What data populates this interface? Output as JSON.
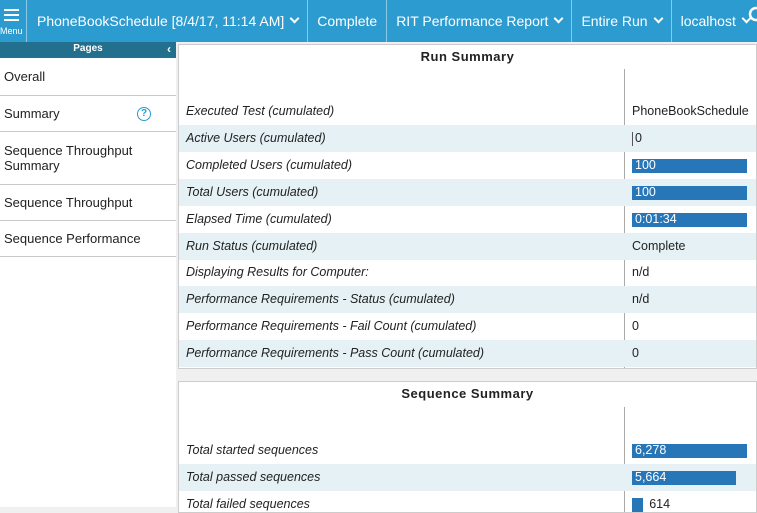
{
  "menu": {
    "label": "Menu"
  },
  "toolbar": {
    "items": [
      {
        "label": "PhoneBookSchedule [8/4/17, 11:14 AM]",
        "dropdown": true
      },
      {
        "label": "Complete",
        "dropdown": false
      },
      {
        "label": "RIT Performance Report",
        "dropdown": true
      },
      {
        "label": "Entire Run",
        "dropdown": true
      },
      {
        "label": "localhost",
        "dropdown": true
      }
    ]
  },
  "sidebar": {
    "title": "Pages",
    "items": [
      "Overall",
      "Summary",
      "Sequence Throughput Summary",
      "Sequence Throughput",
      "Sequence Performance"
    ],
    "help_item": 1
  },
  "run_summary": {
    "title": "Run Summary",
    "rows": [
      {
        "label": "Executed Test (cumulated)",
        "value": "PhoneBookSchedule",
        "bar": false
      },
      {
        "label": "Active Users (cumulated)",
        "value": "0",
        "bar": false
      },
      {
        "label": "Completed Users (cumulated)",
        "value": "100",
        "bar": true
      },
      {
        "label": "Total Users (cumulated)",
        "value": "100",
        "bar": true
      },
      {
        "label": "Elapsed Time (cumulated)",
        "value": "0:01:34",
        "bar": true
      },
      {
        "label": "Run Status (cumulated)",
        "value": "Complete",
        "bar": false
      },
      {
        "label": "Displaying Results for Computer:",
        "value": "n/d",
        "bar": false
      },
      {
        "label": "Performance Requirements - Status (cumulated)",
        "value": "n/d",
        "bar": false
      },
      {
        "label": "Performance Requirements - Fail Count (cumulated)",
        "value": "0",
        "bar": false
      },
      {
        "label": "Performance Requirements - Pass Count (cumulated)",
        "value": "0",
        "bar": false
      }
    ]
  },
  "sequence_summary": {
    "title": "Sequence Summary",
    "rows": [
      {
        "label": "Total started sequences",
        "value": 6278,
        "value_label": "6,278"
      },
      {
        "label": "Total passed sequences",
        "value": 5664,
        "value_label": "5,664"
      },
      {
        "label": "Total failed sequences",
        "value": 614,
        "value_label": "614"
      }
    ]
  }
}
